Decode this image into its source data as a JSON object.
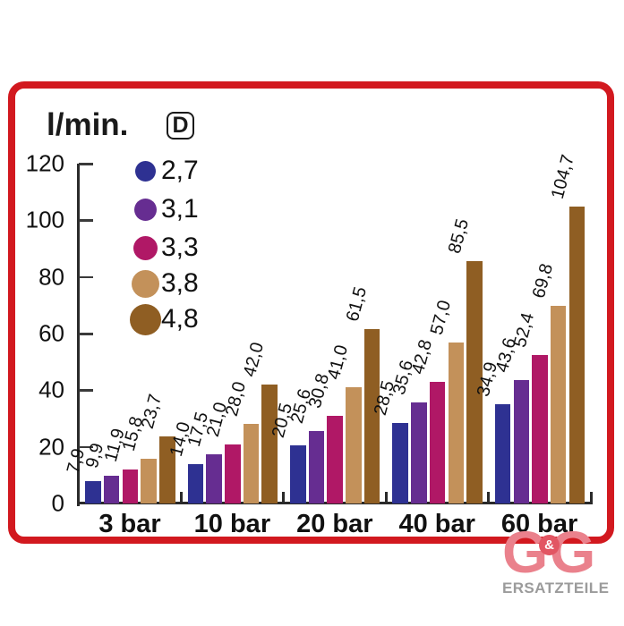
{
  "frame_color": "#d2191f",
  "axis_color": "#2a2a2a",
  "legend": {
    "symbol": "D",
    "items": [
      {
        "label": "2,7",
        "color": "#2e3192",
        "dot_size": 23
      },
      {
        "label": "3,1",
        "color": "#662d91",
        "dot_size": 25
      },
      {
        "label": "3,3",
        "color": "#b01866",
        "dot_size": 27
      },
      {
        "label": "3,8",
        "color": "#c3915a",
        "dot_size": 31
      },
      {
        "label": "4,8",
        "color": "#8f5e23",
        "dot_size": 35
      }
    ]
  },
  "chart_data": {
    "type": "bar",
    "title": "l/min.",
    "ylabel": "l/min.",
    "xlabel": "",
    "ylim": [
      0,
      120
    ],
    "yticks": [
      "0",
      "20",
      "40",
      "60",
      "80",
      "100",
      "120"
    ],
    "grid": false,
    "legend_position": "upper-left-inside",
    "categories": [
      "3 bar",
      "10 bar",
      "20 bar",
      "40 bar",
      "60 bar"
    ],
    "series": [
      {
        "name": "2,7",
        "color": "#2e3192",
        "values": [
          7.9,
          14.0,
          20.5,
          28.5,
          34.9
        ],
        "value_labels": [
          "7,9",
          "14,0",
          "20,5",
          "28,5",
          "34,9"
        ]
      },
      {
        "name": "3,1",
        "color": "#662d91",
        "values": [
          9.9,
          17.5,
          25.6,
          35.6,
          43.6
        ],
        "value_labels": [
          "9,9",
          "17,5",
          "25,6",
          "35,6",
          "43,6"
        ]
      },
      {
        "name": "3,3",
        "color": "#b01866",
        "values": [
          11.9,
          21.0,
          30.8,
          42.8,
          52.4
        ],
        "value_labels": [
          "11,9",
          "21,0",
          "30,8",
          "42,8",
          "52,4"
        ]
      },
      {
        "name": "3,8",
        "color": "#c3915a",
        "values": [
          15.8,
          28.0,
          41.0,
          57.0,
          69.8
        ],
        "value_labels": [
          "15,8",
          "28,0",
          "41,0",
          "57,0",
          "69,8"
        ]
      },
      {
        "name": "4,8",
        "color": "#8f5e23",
        "values": [
          23.7,
          42.0,
          61.5,
          85.5,
          104.7
        ],
        "value_labels": [
          "23,7",
          "42,0",
          "61,5",
          "85,5",
          "104,7"
        ]
      }
    ]
  },
  "logo": {
    "g_left": "G",
    "ampersand": "&",
    "g_right": "G",
    "subtitle": "ERSATZTEILE",
    "letter_color": "#ea818c",
    "badge_color": "#e25663",
    "subtitle_color": "#9b9b9b"
  }
}
